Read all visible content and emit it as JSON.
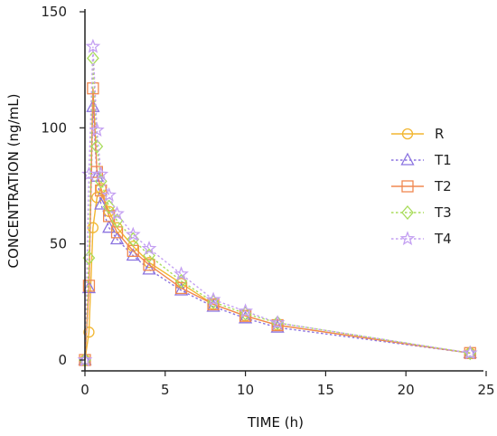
{
  "chart_data": {
    "type": "line",
    "title": "",
    "xlabel": "TIME (h)",
    "ylabel": "CONCENTRATION (ng/mL)",
    "xlim": [
      0,
      25
    ],
    "ylim": [
      0,
      150
    ],
    "xticks": [
      "0",
      "5",
      "10",
      "15",
      "20",
      "25"
    ],
    "yticks": [
      "0",
      "50",
      "100",
      "150"
    ],
    "grid": false,
    "legend_position": "right",
    "series": [
      {
        "name": "R",
        "color": "#f2b630",
        "marker": "circle",
        "dash": "solid",
        "x": [
          0,
          0.25,
          0.5,
          0.75,
          1,
          1.5,
          2,
          3,
          4,
          6,
          8,
          10,
          12,
          24
        ],
        "y": [
          0,
          12,
          57,
          70,
          74,
          64,
          57,
          49,
          42,
          33,
          24,
          19,
          15,
          3
        ]
      },
      {
        "name": "T1",
        "color": "#8b73e0",
        "marker": "triangle",
        "dash": "dotted",
        "x": [
          0,
          0.25,
          0.5,
          0.75,
          1,
          1.5,
          2,
          3,
          4,
          6,
          8,
          10,
          12,
          24
        ],
        "y": [
          0,
          31,
          109,
          79,
          67,
          57,
          52,
          45,
          39,
          30,
          23,
          18,
          14,
          3
        ]
      },
      {
        "name": "T2",
        "color": "#f08850",
        "marker": "square",
        "dash": "solid",
        "x": [
          0,
          0.25,
          0.5,
          0.75,
          1,
          1.5,
          2,
          3,
          4,
          6,
          8,
          10,
          12,
          24
        ],
        "y": [
          0,
          32,
          117,
          81,
          73,
          62,
          55,
          47,
          41,
          31,
          24,
          19,
          15,
          3
        ]
      },
      {
        "name": "T3",
        "color": "#a8dc5a",
        "marker": "diamond",
        "dash": "dotted",
        "x": [
          0,
          0.25,
          0.5,
          0.75,
          1,
          1.5,
          2,
          3,
          4,
          6,
          8,
          10,
          12,
          24
        ],
        "y": [
          0,
          44,
          130,
          92,
          77,
          66,
          60,
          52,
          45,
          34,
          25,
          20,
          16,
          3
        ]
      },
      {
        "name": "T4",
        "color": "#c4a0f2",
        "marker": "star",
        "dash": "dotted",
        "x": [
          0,
          0.25,
          0.5,
          0.75,
          1,
          1.5,
          2,
          3,
          4,
          6,
          8,
          10,
          12,
          24
        ],
        "y": [
          0,
          80,
          135,
          99,
          80,
          71,
          63,
          54,
          48,
          37,
          26,
          21,
          16,
          3
        ]
      }
    ]
  }
}
